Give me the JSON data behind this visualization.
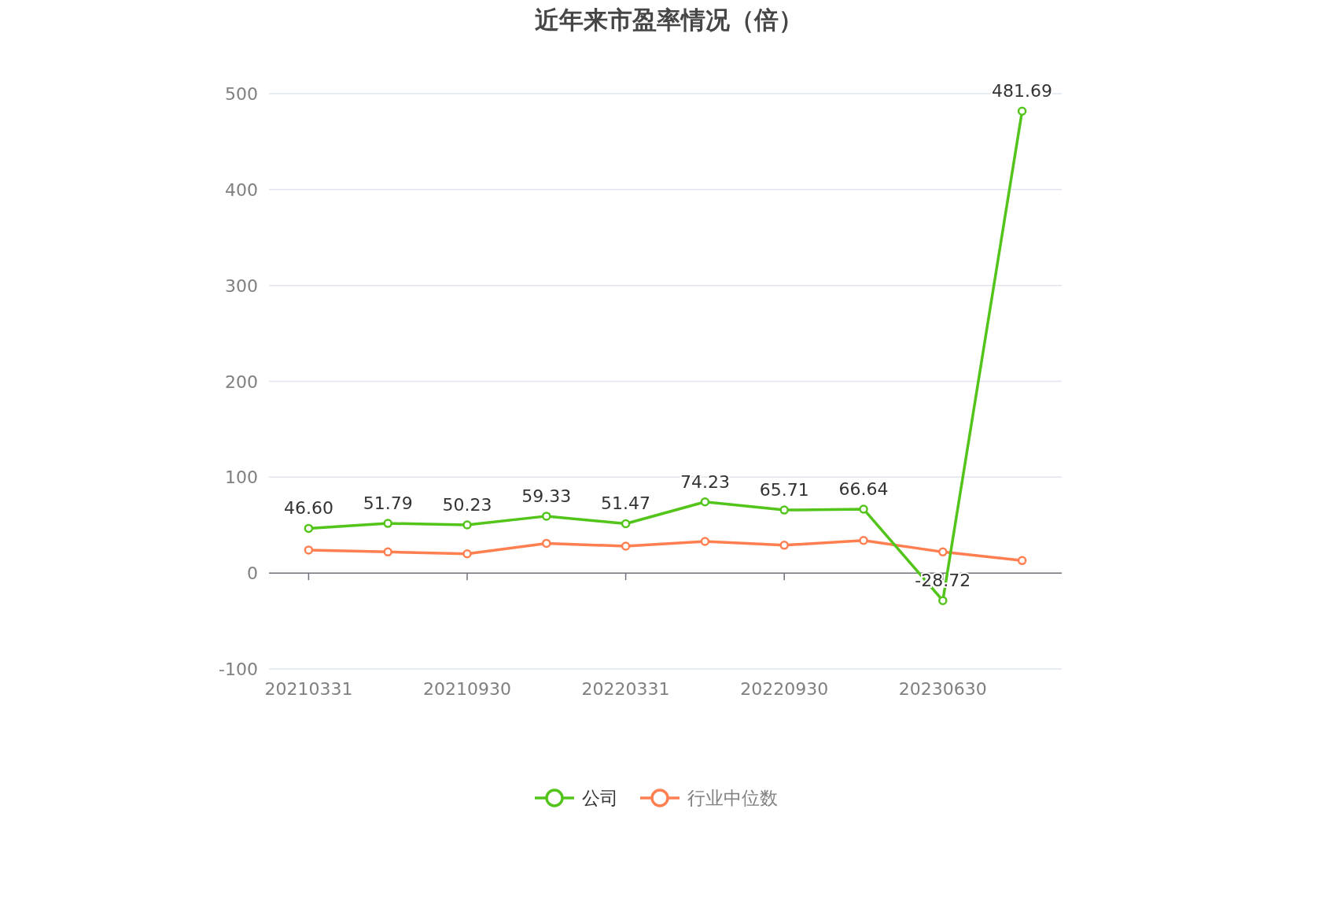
{
  "chart_data": {
    "type": "line",
    "title": "近年来市盈率情况（倍）",
    "categories": [
      "20210331",
      null,
      "20210930",
      null,
      "20220331",
      null,
      "20220930",
      null,
      "20230630",
      null
    ],
    "series": [
      {
        "name": "公司",
        "color": "#52c41a",
        "values": [
          46.6,
          51.79,
          50.23,
          59.33,
          51.47,
          74.23,
          65.71,
          66.64,
          -28.72,
          481.69
        ],
        "value_labels": [
          "46.60",
          "51.79",
          "50.23",
          "59.33",
          "51.47",
          "74.23",
          "65.71",
          "66.64",
          "-28.72",
          "481.69"
        ]
      },
      {
        "name": "行业中位数",
        "color": "#ff7f50",
        "values": [
          24,
          22,
          20,
          31,
          28,
          33,
          29,
          34,
          22,
          13
        ]
      }
    ],
    "ylim": [
      -100,
      500
    ],
    "yticks": [
      -100,
      0,
      100,
      200,
      300,
      400,
      500
    ],
    "grid": "y",
    "legend": "bottom",
    "marker": "circle",
    "line_style": "solid"
  }
}
